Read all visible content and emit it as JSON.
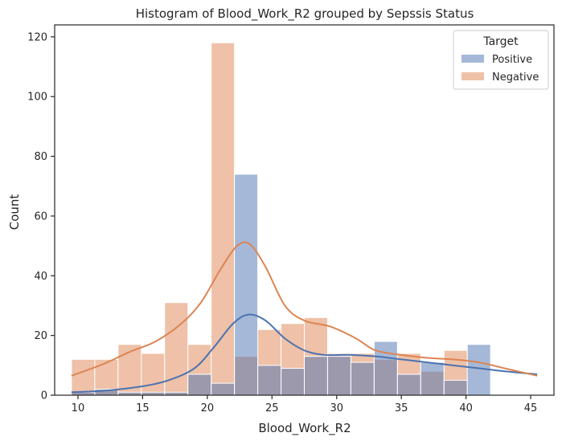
{
  "chart_data": {
    "type": "histogram",
    "title": "Histogram of Blood_Work_R2 grouped by Sepssis  Status",
    "xlabel": "Blood_Work_R2",
    "ylabel": "Count",
    "xlim": [
      8.2,
      46.8
    ],
    "ylim": [
      0,
      124
    ],
    "xticks": [
      10,
      15,
      20,
      25,
      30,
      35,
      40,
      45
    ],
    "yticks": [
      0,
      20,
      40,
      60,
      80,
      100,
      120
    ],
    "bin_edges": [
      9.5,
      11.3,
      13.1,
      14.9,
      16.7,
      18.5,
      20.3,
      22.1,
      23.9,
      25.7,
      27.5,
      29.3,
      31.1,
      32.9,
      34.7,
      36.5,
      38.3,
      40.1,
      41.9,
      43.7,
      45.5
    ],
    "legend": {
      "title": "Target",
      "position": "top-right"
    },
    "series": [
      {
        "name": "Positive",
        "color": "#4c72b0",
        "counts": [
          1,
          2,
          1,
          1,
          1,
          7,
          4,
          74,
          10,
          9,
          13,
          13,
          11,
          18,
          7,
          11,
          5,
          17,
          0,
          0
        ],
        "kde_x": [
          9.5,
          12,
          15,
          17,
          19,
          20.5,
          22,
          23.2,
          24.5,
          26,
          27.5,
          29,
          31,
          33,
          35,
          37,
          39,
          41,
          43,
          45.5
        ],
        "kde_y": [
          1,
          1.5,
          3,
          5,
          9,
          16,
          24,
          27,
          25,
          19,
          15,
          13.5,
          13.5,
          13,
          12,
          11,
          10,
          9,
          8,
          7
        ]
      },
      {
        "name": "Negative",
        "color": "#dd8452",
        "counts": [
          12,
          12,
          17,
          14,
          31,
          17,
          118,
          13,
          22,
          24,
          26,
          14,
          14,
          12,
          14,
          8,
          15,
          0,
          0,
          0
        ],
        "kde_x": [
          9.5,
          12,
          14,
          16,
          18,
          19.5,
          21,
          22.3,
          23.3,
          24.5,
          26,
          27.5,
          29.5,
          31.5,
          33,
          35,
          37,
          39,
          41,
          43,
          45.5
        ],
        "kde_y": [
          6.5,
          10.5,
          14.5,
          18,
          24,
          31,
          42,
          50,
          50.5,
          43,
          30,
          25,
          23,
          19,
          15,
          13.5,
          12.5,
          12,
          11,
          9,
          6.5
        ]
      }
    ]
  }
}
